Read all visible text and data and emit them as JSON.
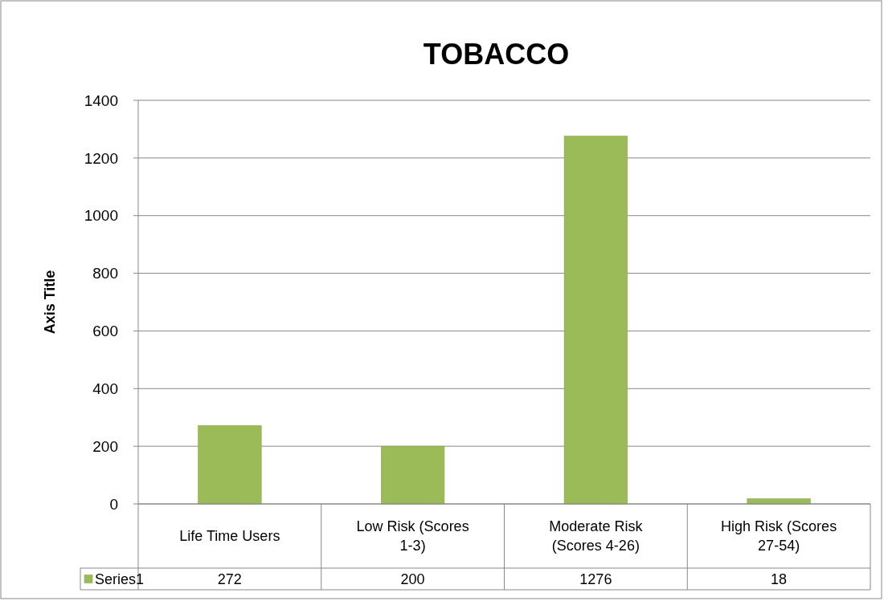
{
  "chart_data": {
    "type": "bar",
    "title": "TOBACCO",
    "ylabel": "Axis Title",
    "categories": [
      "Life Time Users",
      "Low Risk (Scores 1-3)",
      "Moderate Risk (Scores 4-26)",
      "High Risk (Scores 27-54)"
    ],
    "series": [
      {
        "name": "Series1",
        "color": "#9bbb59",
        "values": [
          272,
          200,
          1276,
          18
        ]
      }
    ],
    "ylim": [
      0,
      1400
    ],
    "yticks": [
      0,
      200,
      400,
      600,
      800,
      1000,
      1200,
      1400
    ],
    "grid": "y",
    "data_labels": true,
    "legend": "bottom"
  }
}
